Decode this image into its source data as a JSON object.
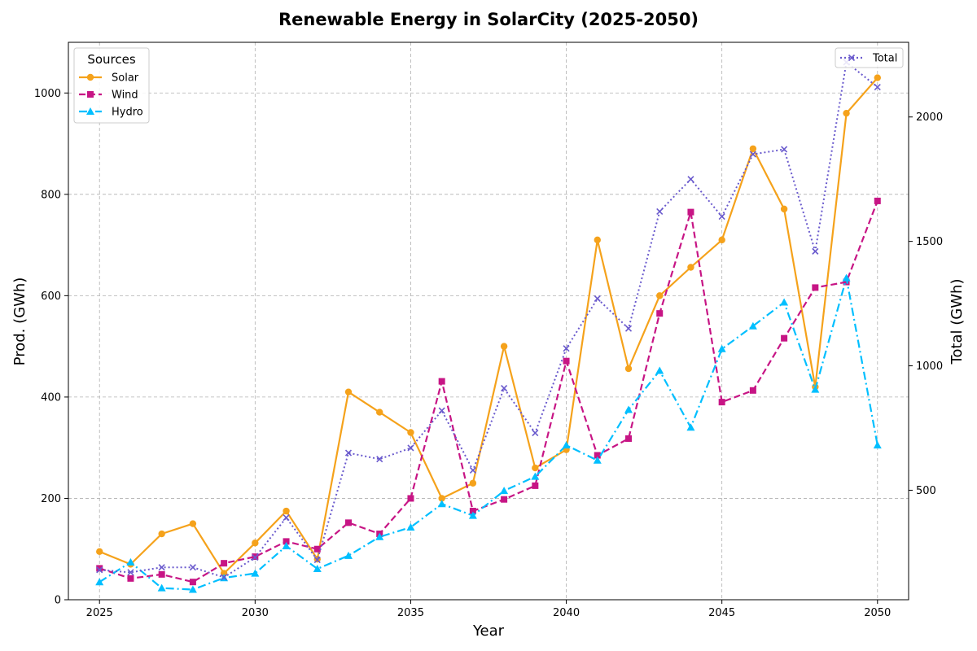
{
  "chart_data": {
    "type": "line",
    "title": "Renewable Energy in SolarCity (2025-2050)",
    "xlabel": "Year",
    "ylabel": "Prod. (GWh)",
    "ylabel_right": "Total (GWh)",
    "x": [
      2025,
      2026,
      2027,
      2028,
      2029,
      2030,
      2031,
      2032,
      2033,
      2034,
      2035,
      2036,
      2037,
      2038,
      2039,
      2040,
      2041,
      2042,
      2043,
      2044,
      2045,
      2046,
      2047,
      2048,
      2049,
      2050
    ],
    "xlim": [
      2024,
      2051
    ],
    "ylim": [
      0,
      1100
    ],
    "ylim_right": [
      60,
      2300
    ],
    "x_ticks": [
      2025,
      2030,
      2035,
      2040,
      2045,
      2050
    ],
    "y_ticks": [
      0,
      200,
      400,
      600,
      800,
      1000
    ],
    "y_ticks_right": [
      500,
      1000,
      1500,
      2000
    ],
    "grid": true,
    "legend_left": {
      "title": "Sources",
      "placement": "top-left"
    },
    "legend_right": {
      "placement": "top-right"
    },
    "series": [
      {
        "name": "Solar",
        "axis": "left",
        "color": "#f5a21b",
        "line_style": "solid",
        "marker": "circle",
        "values": [
          95,
          70,
          130,
          150,
          52,
          112,
          175,
          80,
          410,
          370,
          330,
          200,
          230,
          500,
          260,
          296,
          710,
          456,
          600,
          656,
          710,
          890,
          771,
          420,
          960,
          1030
        ]
      },
      {
        "name": "Wind",
        "axis": "left",
        "color": "#c71585",
        "line_style": "dashed",
        "marker": "square",
        "values": [
          62,
          42,
          50,
          35,
          72,
          85,
          115,
          100,
          152,
          130,
          200,
          431,
          175,
          198,
          225,
          471,
          285,
          318,
          565,
          765,
          390,
          413,
          516,
          616,
          627,
          787
        ]
      },
      {
        "name": "Hydro",
        "axis": "left",
        "color": "#00bfff",
        "line_style": "dashdot",
        "marker": "triangle",
        "values": [
          35,
          74,
          23,
          20,
          43,
          52,
          106,
          61,
          87,
          124,
          143,
          189,
          166,
          215,
          243,
          305,
          275,
          375,
          452,
          340,
          495,
          540,
          587,
          415,
          635,
          305
        ]
      },
      {
        "name": "Total",
        "axis": "right",
        "color": "#6a5acd",
        "line_style": "dotted",
        "marker": "x",
        "values": [
          180,
          170,
          190,
          190,
          150,
          230,
          390,
          220,
          650,
          625,
          670,
          820,
          580,
          910,
          730,
          1070,
          1270,
          1150,
          1620,
          1750,
          1600,
          1850,
          1870,
          1460,
          2220,
          2120
        ]
      }
    ]
  }
}
